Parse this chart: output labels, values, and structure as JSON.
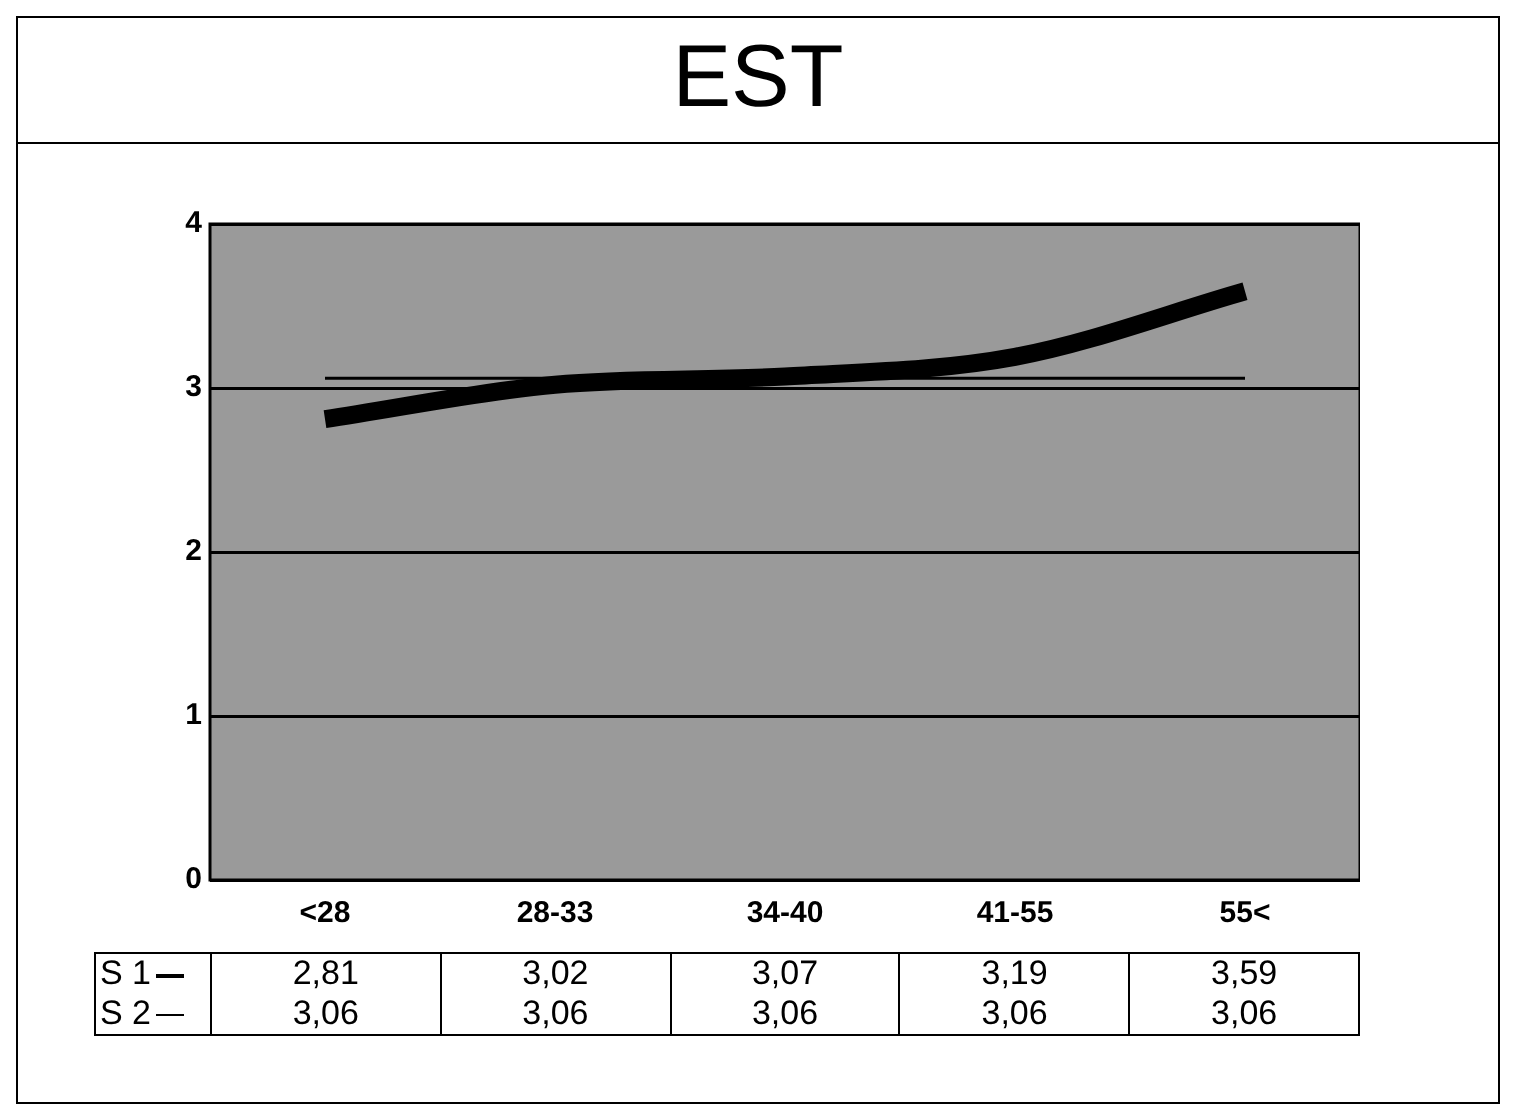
{
  "chart_data": {
    "type": "line",
    "title": "EST",
    "categories": [
      "<28",
      "28-33",
      "34-40",
      "41-55",
      "55<"
    ],
    "series": [
      {
        "name": "S 1",
        "color": "#000000",
        "values": [
          2.81,
          3.02,
          3.07,
          3.19,
          3.59
        ],
        "value_labels": [
          "2,81",
          "3,02",
          "3,07",
          "3,19",
          "3,59"
        ]
      },
      {
        "name": "S 2",
        "color": "#000000",
        "values": [
          3.06,
          3.06,
          3.06,
          3.06,
          3.06
        ],
        "value_labels": [
          "3,06",
          "3,06",
          "3,06",
          "3,06",
          "3,06"
        ]
      }
    ],
    "ylim": [
      0,
      4
    ],
    "yticks": [
      0,
      1,
      2,
      3,
      4
    ],
    "grid": "y",
    "legend": "bottom",
    "marker": "none",
    "line_style": "solid"
  }
}
